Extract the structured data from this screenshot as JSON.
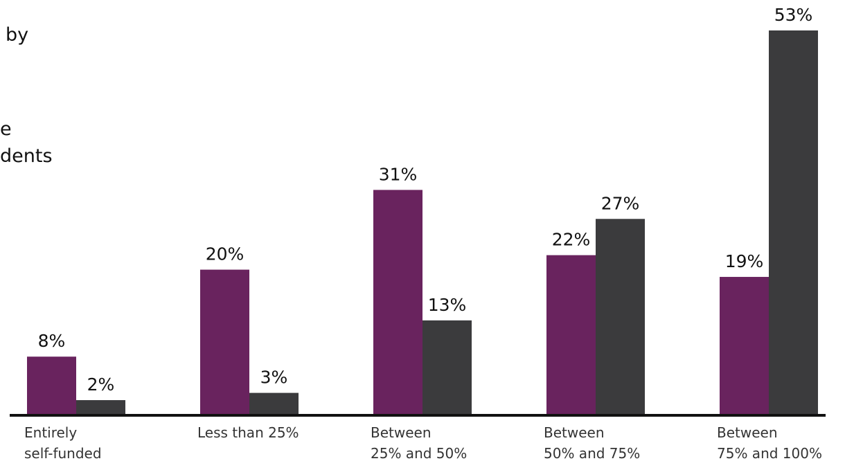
{
  "title_fragments": [
    "by",
    "e",
    "dents"
  ],
  "chart_data": {
    "type": "bar",
    "categories": [
      [
        "Entirely",
        "self-funded"
      ],
      [
        "Less than 25%"
      ],
      [
        "Between",
        "25% and 50%"
      ],
      [
        "Between",
        "50% and 75%"
      ],
      [
        "Between",
        "75% and 100%"
      ]
    ],
    "series": [
      {
        "color": "#69235e",
        "values": [
          8,
          20,
          31,
          22,
          19
        ],
        "labels": [
          "8%",
          "20%",
          "31%",
          "22%",
          "19%"
        ]
      },
      {
        "color": "#3b3b3d",
        "values": [
          2,
          3,
          13,
          27,
          53
        ],
        "labels": [
          "2%",
          "3%",
          "13%",
          "27%",
          "53%"
        ]
      }
    ],
    "ylim": [
      0,
      53
    ],
    "legend": "none",
    "grid": false,
    "axis_color": "#111111"
  }
}
